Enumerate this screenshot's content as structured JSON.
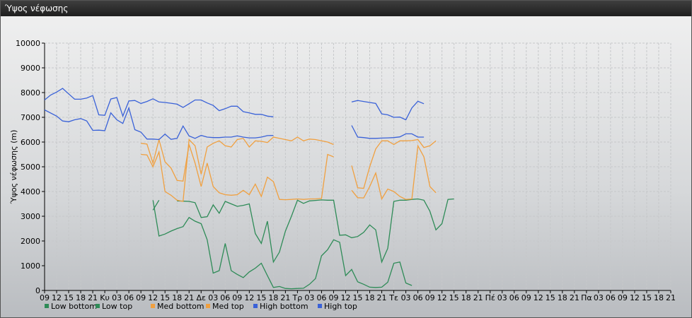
{
  "window": {
    "title": "Ύψος νέφωσης"
  },
  "chart_data": {
    "type": "line",
    "title": "",
    "ylabel": "Ύψος νέφωσης (m)",
    "xlabel": "",
    "ylim": [
      0,
      10000
    ],
    "yticks": [
      0,
      1000,
      2000,
      3000,
      4000,
      5000,
      6000,
      7000,
      8000,
      9000,
      10000
    ],
    "grid": true,
    "legend_position": "bottom-left",
    "x_tick_labels": [
      "09",
      "12",
      "15",
      "18",
      "21",
      "Κυ",
      "03",
      "06",
      "09",
      "12",
      "15",
      "18",
      "21",
      "Δε",
      "03",
      "06",
      "09",
      "12",
      "15",
      "18",
      "21",
      "Τρ",
      "03",
      "06",
      "09",
      "12",
      "15",
      "18",
      "21",
      "Τε",
      "03",
      "06",
      "09",
      "12",
      "15",
      "18",
      "21",
      "Πέ",
      "03",
      "06",
      "09",
      "12",
      "15",
      "18",
      "21",
      "Πα",
      "03",
      "06",
      "09",
      "12",
      "15",
      "18",
      "21"
    ],
    "x_hours": [
      0,
      3,
      6,
      9,
      12,
      15,
      18,
      21,
      24,
      27,
      30,
      33,
      36,
      39,
      42,
      45,
      48,
      51,
      54,
      57,
      60,
      63,
      66,
      69,
      72,
      75,
      78,
      81,
      84,
      87,
      90,
      93,
      96,
      99,
      102,
      105,
      108,
      111,
      114,
      117,
      120,
      123,
      126,
      129,
      132,
      135,
      138,
      141,
      144,
      147,
      150,
      153,
      156
    ],
    "series": [
      {
        "name": "Low bottom",
        "color": "#2e8b57",
        "points": [
          [
            27,
            3250
          ],
          [
            28.5,
            3650
          ],
          [
            33,
            3620
          ],
          [
            36,
            3600
          ],
          [
            37.5,
            3550
          ],
          [
            39,
            2950
          ],
          [
            40.5,
            2980
          ],
          [
            42,
            3460
          ],
          [
            43.5,
            3120
          ],
          [
            45,
            3600
          ],
          [
            46.5,
            3500
          ],
          [
            48,
            3400
          ],
          [
            49.5,
            3440
          ],
          [
            51,
            3500
          ],
          [
            52.5,
            2300
          ],
          [
            54,
            1900
          ],
          [
            55.5,
            2800
          ],
          [
            57,
            1150
          ],
          [
            58.5,
            1550
          ],
          [
            60,
            2400
          ],
          [
            61.5,
            3000
          ],
          [
            63,
            3650
          ],
          [
            64.5,
            3520
          ],
          [
            66,
            3620
          ],
          [
            67.5,
            3640
          ],
          [
            69,
            3660
          ],
          [
            70.5,
            3650
          ],
          [
            72,
            3650
          ],
          [
            73.5,
            2230
          ],
          [
            75,
            2250
          ],
          [
            76.5,
            2130
          ],
          [
            78,
            2180
          ],
          [
            79.5,
            2350
          ],
          [
            81,
            2650
          ],
          [
            82.5,
            2450
          ],
          [
            84,
            1150
          ],
          [
            85.5,
            1700
          ],
          [
            87,
            3600
          ],
          [
            88.5,
            3650
          ],
          [
            90,
            3650
          ],
          [
            91.5,
            3680
          ],
          [
            93,
            3700
          ],
          [
            94.5,
            3650
          ],
          [
            96,
            3200
          ],
          [
            97.5,
            2450
          ],
          [
            99,
            2700
          ],
          [
            100.5,
            3680
          ],
          [
            102,
            3700
          ]
        ]
      },
      {
        "name": "Low top",
        "color": "#2e8b57",
        "points": [
          [
            27,
            3650
          ],
          [
            28.5,
            2200
          ],
          [
            30,
            2280
          ],
          [
            31.5,
            2400
          ],
          [
            33,
            2500
          ],
          [
            34.5,
            2580
          ],
          [
            36,
            2950
          ],
          [
            37.5,
            2800
          ],
          [
            39,
            2700
          ],
          [
            40.5,
            2050
          ],
          [
            42,
            700
          ],
          [
            43.5,
            800
          ],
          [
            45,
            1900
          ],
          [
            46.5,
            800
          ],
          [
            48,
            650
          ],
          [
            49.5,
            520
          ],
          [
            51,
            750
          ],
          [
            52.5,
            900
          ],
          [
            54,
            1100
          ],
          [
            55.5,
            600
          ],
          [
            57,
            120
          ],
          [
            58.5,
            160
          ],
          [
            60,
            80
          ],
          [
            61.5,
            70
          ],
          [
            63,
            80
          ],
          [
            64.5,
            90
          ],
          [
            66,
            250
          ],
          [
            67.5,
            480
          ],
          [
            69,
            1400
          ],
          [
            70.5,
            1650
          ],
          [
            72,
            2050
          ],
          [
            73.5,
            1950
          ],
          [
            75,
            600
          ],
          [
            76.5,
            850
          ],
          [
            78,
            350
          ],
          [
            79.5,
            250
          ],
          [
            81,
            130
          ],
          [
            82.5,
            120
          ],
          [
            84,
            130
          ],
          [
            85.5,
            330
          ],
          [
            87,
            1100
          ],
          [
            88.5,
            1150
          ],
          [
            90,
            300
          ],
          [
            91.5,
            200
          ]
        ]
      },
      {
        "name": "Med bottom",
        "color": "#f0a040",
        "points": [
          [
            24,
            5500
          ],
          [
            25.5,
            5480
          ],
          [
            27,
            5000
          ],
          [
            28.5,
            5600
          ],
          [
            30,
            4000
          ],
          [
            31.5,
            3850
          ],
          [
            33,
            3650
          ],
          [
            34.5,
            3600
          ],
          [
            36,
            6100
          ],
          [
            37.5,
            5850
          ],
          [
            39,
            4700
          ],
          [
            40.5,
            5800
          ],
          [
            42,
            5950
          ],
          [
            43.5,
            6050
          ],
          [
            45,
            5850
          ],
          [
            46.5,
            5800
          ],
          [
            48,
            6100
          ],
          [
            49.5,
            6150
          ],
          [
            51,
            5800
          ],
          [
            52.5,
            6050
          ],
          [
            54,
            6030
          ],
          [
            55.5,
            5980
          ],
          [
            57,
            6200
          ],
          [
            58.5,
            6150
          ],
          [
            60,
            6100
          ],
          [
            61.5,
            6050
          ],
          [
            63,
            6200
          ],
          [
            64.5,
            6050
          ],
          [
            66,
            6120
          ],
          [
            67.5,
            6100
          ],
          [
            69,
            6050
          ],
          [
            70.5,
            6000
          ],
          [
            72,
            5900
          ],
          [
            76.5,
            4050
          ],
          [
            78,
            3750
          ],
          [
            79.5,
            3740
          ],
          [
            81,
            4200
          ],
          [
            82.5,
            4750
          ],
          [
            84,
            3700
          ],
          [
            85.5,
            4100
          ],
          [
            87,
            4000
          ],
          [
            88.5,
            3800
          ],
          [
            90,
            3680
          ],
          [
            91.5,
            3700
          ],
          [
            93,
            5850
          ],
          [
            94.5,
            5400
          ],
          [
            96,
            4200
          ],
          [
            97.5,
            3950
          ]
        ]
      },
      {
        "name": "Med top",
        "color": "#f0a040",
        "points": [
          [
            24,
            5950
          ],
          [
            25.5,
            5920
          ],
          [
            27,
            5150
          ],
          [
            28.5,
            6100
          ],
          [
            30,
            5200
          ],
          [
            31.5,
            4950
          ],
          [
            33,
            4450
          ],
          [
            34.5,
            4420
          ],
          [
            36,
            5900
          ],
          [
            37.5,
            5150
          ],
          [
            39,
            4200
          ],
          [
            40.5,
            5150
          ],
          [
            42,
            4200
          ],
          [
            43.5,
            3950
          ],
          [
            45,
            3870
          ],
          [
            46.5,
            3850
          ],
          [
            48,
            3870
          ],
          [
            49.5,
            4050
          ],
          [
            51,
            3870
          ],
          [
            52.5,
            4300
          ],
          [
            54,
            3800
          ],
          [
            55.5,
            4580
          ],
          [
            57,
            4400
          ],
          [
            58.5,
            3680
          ],
          [
            60,
            3670
          ],
          [
            61.5,
            3680
          ],
          [
            63,
            3700
          ],
          [
            64.5,
            3680
          ],
          [
            66,
            3700
          ],
          [
            67.5,
            3700
          ],
          [
            69,
            3720
          ],
          [
            70.5,
            5500
          ],
          [
            72,
            5400
          ],
          [
            76.5,
            5050
          ],
          [
            78,
            4150
          ],
          [
            79.5,
            4130
          ],
          [
            81,
            5000
          ],
          [
            82.5,
            5720
          ],
          [
            84,
            6050
          ],
          [
            85.5,
            6050
          ],
          [
            87,
            5900
          ],
          [
            88.5,
            6050
          ],
          [
            90,
            6050
          ],
          [
            91.5,
            6060
          ],
          [
            93,
            6100
          ],
          [
            94.5,
            5780
          ],
          [
            96,
            5850
          ],
          [
            97.5,
            6050
          ]
        ]
      },
      {
        "name": "High bottom",
        "color": "#3a62d8",
        "points": [
          [
            0,
            7300
          ],
          [
            3,
            7050
          ],
          [
            4.5,
            6850
          ],
          [
            6,
            6820
          ],
          [
            7.5,
            6900
          ],
          [
            9,
            6950
          ],
          [
            10.5,
            6850
          ],
          [
            12,
            6470
          ],
          [
            13.5,
            6480
          ],
          [
            15,
            6460
          ],
          [
            16.5,
            7180
          ],
          [
            18,
            6900
          ],
          [
            19.5,
            6750
          ],
          [
            21,
            7380
          ],
          [
            22.5,
            6500
          ],
          [
            24,
            6400
          ],
          [
            25.5,
            6120
          ],
          [
            27,
            6120
          ],
          [
            28.5,
            6100
          ],
          [
            30,
            6320
          ],
          [
            31.5,
            6110
          ],
          [
            33,
            6150
          ],
          [
            34.5,
            6650
          ],
          [
            36,
            6250
          ],
          [
            37.5,
            6150
          ],
          [
            39,
            6270
          ],
          [
            40.5,
            6200
          ],
          [
            42,
            6180
          ],
          [
            43.5,
            6180
          ],
          [
            45,
            6200
          ],
          [
            46.5,
            6200
          ],
          [
            48,
            6250
          ],
          [
            49.5,
            6200
          ],
          [
            51,
            6170
          ],
          [
            52.5,
            6170
          ],
          [
            54,
            6200
          ],
          [
            55.5,
            6260
          ],
          [
            57,
            6270
          ],
          [
            76.5,
            6670
          ],
          [
            78,
            6200
          ],
          [
            79.5,
            6180
          ],
          [
            81,
            6150
          ],
          [
            82.5,
            6150
          ],
          [
            84,
            6160
          ],
          [
            85.5,
            6170
          ],
          [
            87,
            6180
          ],
          [
            88.5,
            6210
          ],
          [
            90,
            6330
          ],
          [
            91.5,
            6330
          ],
          [
            93,
            6200
          ],
          [
            94.5,
            6200
          ]
        ]
      },
      {
        "name": "High top",
        "color": "#3a62d8",
        "points": [
          [
            0,
            7700
          ],
          [
            1.5,
            7900
          ],
          [
            3,
            8020
          ],
          [
            4.5,
            8170
          ],
          [
            6,
            7950
          ],
          [
            7.5,
            7730
          ],
          [
            9,
            7730
          ],
          [
            10.5,
            7780
          ],
          [
            12,
            7880
          ],
          [
            13.5,
            7100
          ],
          [
            15,
            7080
          ],
          [
            16.5,
            7740
          ],
          [
            18,
            7800
          ],
          [
            19.5,
            7050
          ],
          [
            21,
            7660
          ],
          [
            22.5,
            7680
          ],
          [
            24,
            7560
          ],
          [
            25.5,
            7640
          ],
          [
            27,
            7750
          ],
          [
            28.5,
            7620
          ],
          [
            30,
            7600
          ],
          [
            31.5,
            7570
          ],
          [
            33,
            7530
          ],
          [
            34.5,
            7400
          ],
          [
            36,
            7550
          ],
          [
            37.5,
            7700
          ],
          [
            39,
            7700
          ],
          [
            40.5,
            7580
          ],
          [
            42,
            7480
          ],
          [
            43.5,
            7270
          ],
          [
            45,
            7350
          ],
          [
            46.5,
            7450
          ],
          [
            48,
            7450
          ],
          [
            49.5,
            7230
          ],
          [
            51,
            7180
          ],
          [
            52.5,
            7120
          ],
          [
            54,
            7120
          ],
          [
            55.5,
            7050
          ],
          [
            57,
            7020
          ],
          [
            76.5,
            7620
          ],
          [
            78,
            7680
          ],
          [
            79.5,
            7640
          ],
          [
            81,
            7600
          ],
          [
            82.5,
            7560
          ],
          [
            84,
            7140
          ],
          [
            85.5,
            7100
          ],
          [
            87,
            7000
          ],
          [
            88.5,
            7010
          ],
          [
            90,
            6900
          ],
          [
            91.5,
            7380
          ],
          [
            93,
            7650
          ],
          [
            94.5,
            7550
          ]
        ]
      }
    ]
  }
}
